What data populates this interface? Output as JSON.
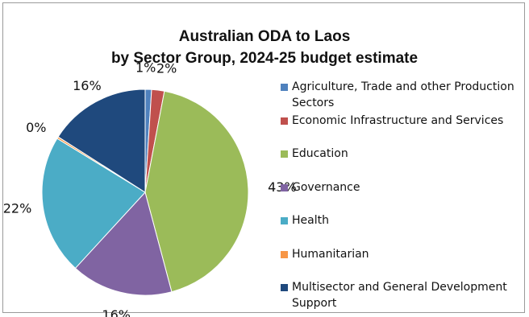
{
  "chart_data": {
    "type": "pie",
    "title_line1": "Australian ODA to Laos",
    "title_line2": "by Sector Group, 2024-25 budget estimate",
    "slices": [
      {
        "label": "Agriculture, Trade and other Production Sectors",
        "value": 1,
        "display": "1%",
        "color": "#4f81bd"
      },
      {
        "label": "Economic Infrastructure and Services",
        "value": 2,
        "display": "2%",
        "color": "#c0504d"
      },
      {
        "label": "Education",
        "value": 43,
        "display": "43%",
        "color": "#9bbb59"
      },
      {
        "label": "Governance",
        "value": 16,
        "display": "16%",
        "color": "#8064a2"
      },
      {
        "label": "Health",
        "value": 22,
        "display": "22%",
        "color": "#4bacc6"
      },
      {
        "label": "Humanitarian",
        "value": 0.3,
        "display": "0%",
        "color": "#f79646"
      },
      {
        "label": "Multisector and General Development Support",
        "value": 16,
        "display": "16%",
        "color": "#1f497d"
      }
    ],
    "legend_position": "right"
  }
}
